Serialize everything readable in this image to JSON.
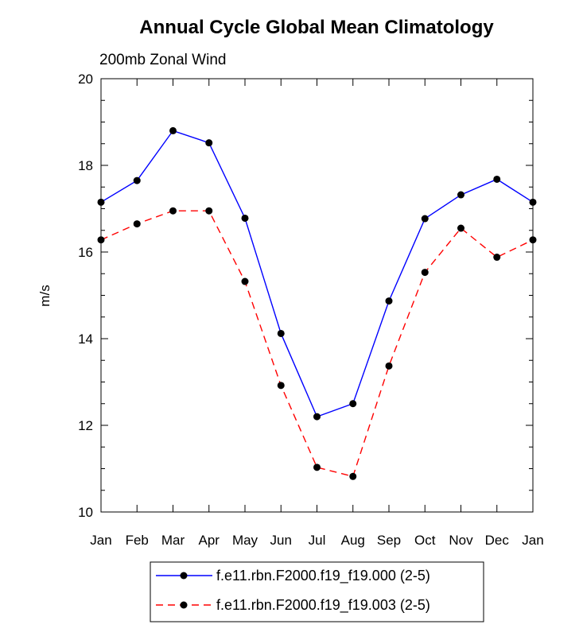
{
  "chart_data": {
    "type": "line",
    "title": "Annual Cycle Global Mean Climatology",
    "subtitle": "200mb Zonal Wind",
    "xlabel": "",
    "ylabel": "m/s",
    "categories": [
      "Jan",
      "Feb",
      "Mar",
      "Apr",
      "May",
      "Jun",
      "Jul",
      "Aug",
      "Sep",
      "Oct",
      "Nov",
      "Dec",
      "Jan"
    ],
    "ylim": [
      10,
      20
    ],
    "yticks": [
      "10",
      "12",
      "14",
      "16",
      "18",
      "20"
    ],
    "grid": false,
    "legend_position": "bottom",
    "series": [
      {
        "name": "f.e11.rbn.F2000.f19_f19.000 (2-5)",
        "color": "#0000ff",
        "dash": "solid",
        "marker": "filled-circle",
        "values": [
          17.15,
          17.65,
          18.8,
          18.52,
          16.78,
          14.12,
          12.2,
          12.5,
          14.87,
          16.77,
          17.32,
          17.68,
          17.15
        ]
      },
      {
        "name": "f.e11.rbn.F2000.f19_f19.003 (2-5)",
        "color": "#ff0000",
        "dash": "dashed",
        "marker": "filled-circle",
        "values": [
          16.28,
          16.65,
          16.95,
          16.95,
          15.32,
          12.92,
          11.03,
          10.82,
          13.37,
          15.53,
          16.55,
          15.88,
          16.28
        ]
      }
    ]
  }
}
